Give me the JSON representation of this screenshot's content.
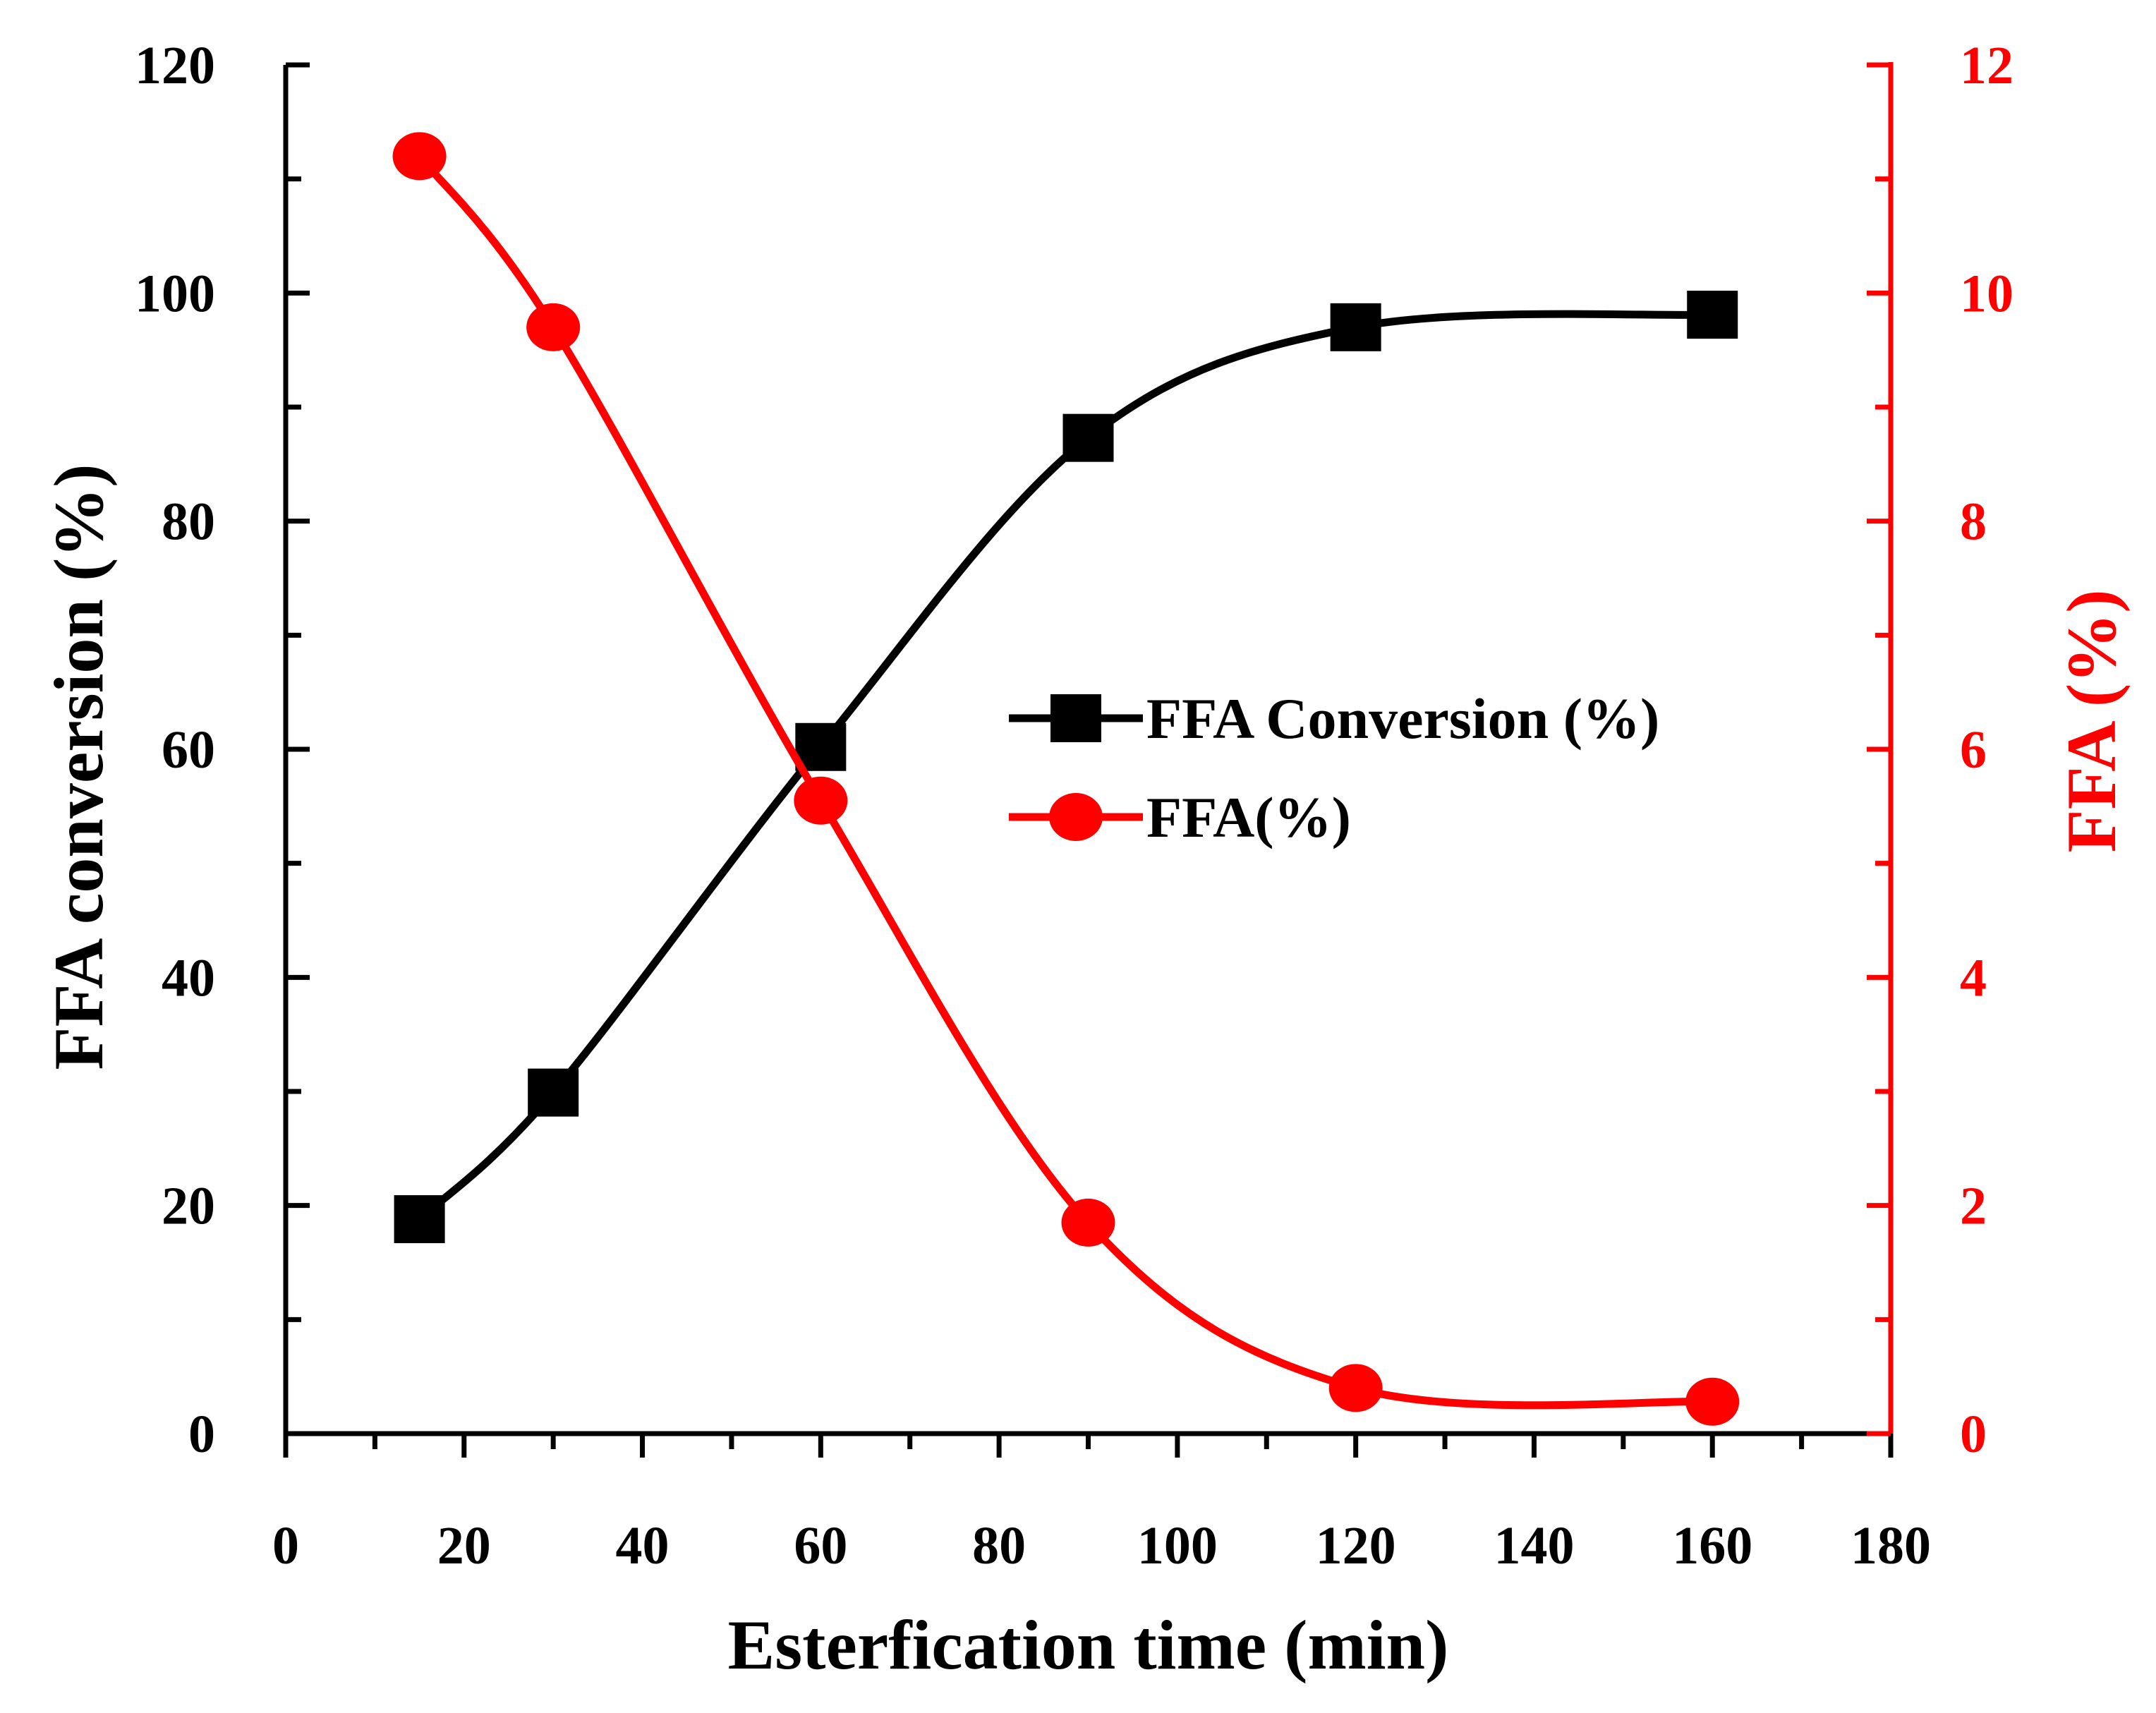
{
  "chart_data": {
    "type": "line",
    "title": "",
    "xlabel": "Esterfication time (min)",
    "ylabel_left": "FFA conversion (%)",
    "ylabel_right": "FFA (%)",
    "xlim": [
      0,
      180
    ],
    "ylim_left": [
      0,
      120
    ],
    "ylim_right": [
      0,
      12
    ],
    "x_ticks": [
      "0",
      "20",
      "40",
      "60",
      "80",
      "100",
      "120",
      "140",
      "160",
      "180"
    ],
    "y_left_ticks": [
      "0",
      "20",
      "40",
      "60",
      "80",
      "100",
      "120"
    ],
    "y_right_ticks": [
      "0",
      "2",
      "4",
      "6",
      "8",
      "10",
      "12"
    ],
    "grid": false,
    "legend_position": "center-right",
    "series": [
      {
        "name": "FFA Conversion (%)",
        "axis": "left",
        "marker": "square",
        "color": "#000000",
        "x": [
          15,
          30,
          60,
          90,
          120,
          160
        ],
        "values": [
          18.8,
          29.9,
          60.2,
          87.3,
          97.0,
          98.1
        ]
      },
      {
        "name": "FFA(%)",
        "axis": "right",
        "marker": "circle",
        "color": "#ff0000",
        "x": [
          15,
          30,
          60,
          90,
          120,
          160
        ],
        "values": [
          11.2,
          9.7,
          5.55,
          1.85,
          0.4,
          0.28
        ]
      }
    ]
  }
}
